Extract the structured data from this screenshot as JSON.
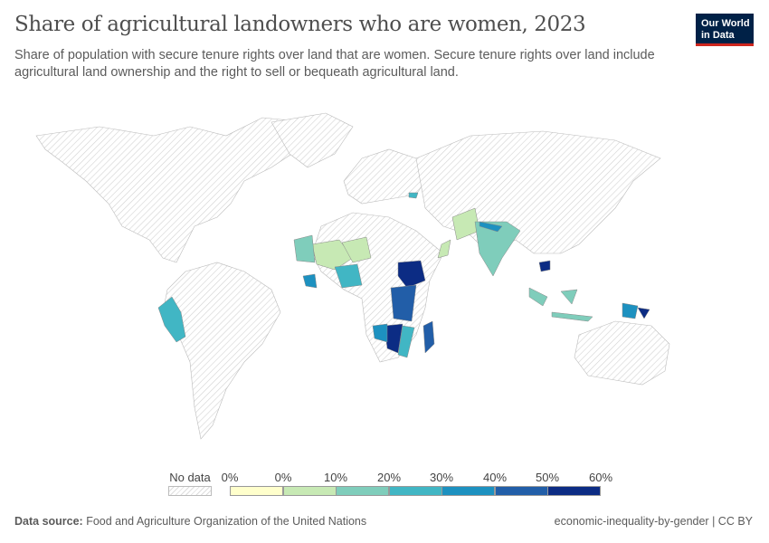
{
  "title": "Share of agricultural landowners who are women, 2023",
  "subtitle": "Share of population with secure tenure rights over land that are women. Secure tenure rights over land include agricultural land ownership and the right to sell or bequeath agricultural land.",
  "logo": {
    "line1": "Our World",
    "line2": "in Data"
  },
  "legend": {
    "no_data_label": "No data",
    "tick_labels": [
      "0%",
      "0%",
      "10%",
      "20%",
      "30%",
      "40%",
      "50%",
      "60%"
    ],
    "colors": [
      "#ffffcc",
      "#c7e9b4",
      "#7fcdbb",
      "#41b6c4",
      "#1d91c0",
      "#225ea8",
      "#0c2c84"
    ]
  },
  "footer": {
    "source_label": "Data source:",
    "source": "Food and Agriculture Organization of the United Nations",
    "right": "economic-inequality-by-gender | CC BY"
  }
}
